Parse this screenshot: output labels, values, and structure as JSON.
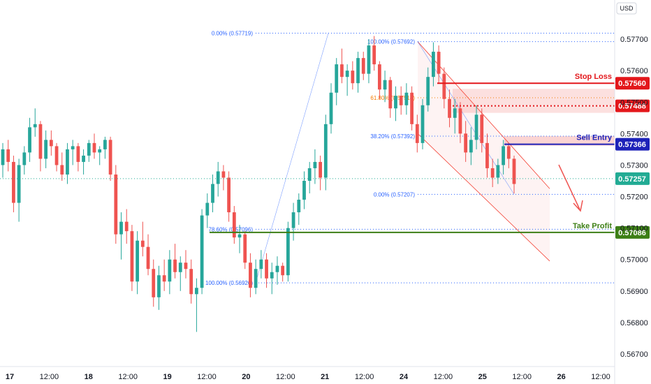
{
  "currency": "USD",
  "colors": {
    "up": "#26a69a",
    "down": "#ef5350",
    "stop": "#e3171b",
    "entry": "#1d22b9",
    "target": "#3d7f16",
    "current": "#22ab94",
    "fib_blue": "#2962ff",
    "fib_orange": "#f57c00",
    "channel": "#f44336"
  },
  "chart_data": {
    "type": "candlestick",
    "y_ticks": [
      "0.57700",
      "0.57600",
      "0.57500",
      "0.57400",
      "0.57300",
      "0.57200",
      "0.57100",
      "0.57000",
      "0.56900",
      "0.56800",
      "0.56700"
    ],
    "ylim": [
      0.5666,
      0.5778
    ],
    "x_ticks": [
      "17",
      "12:00",
      "18",
      "12:00",
      "19",
      "12:00",
      "20",
      "12:00",
      "21",
      "12:00",
      "24",
      "12:00",
      "25",
      "12:00",
      "26",
      "12:00"
    ],
    "levels": [
      {
        "name": "Stop Loss",
        "value": 0.5756,
        "label": "0.57560"
      },
      {
        "name": "",
        "value": 0.57488,
        "label": "0.57488"
      },
      {
        "name": "Sell Entry",
        "value": 0.57366,
        "label": "0.57366"
      },
      {
        "name": "",
        "value": 0.57257,
        "label": "0.57257"
      },
      {
        "name": "Take Profit",
        "value": 0.57086,
        "label": "0.57086"
      }
    ],
    "fib_1": [
      {
        "label": "0.00% (0.57719)",
        "value": 0.57719
      },
      {
        "label": "78.60% (0.57096)",
        "value": 0.57096
      },
      {
        "label": "100.00% (0.56926)",
        "value": 0.56926
      }
    ],
    "fib_2": [
      {
        "label": "100.00% (0.57692)",
        "value": 0.57692
      },
      {
        "label": "61.80% (0.57514)",
        "value": 0.57514
      },
      {
        "label": "38.20% (0.57392)",
        "value": 0.57392
      },
      {
        "label": "0.00% (0.57207)",
        "value": 0.57207
      }
    ],
    "candles": [
      [
        0.573,
        0.5737,
        0.5726,
        0.5735
      ],
      [
        0.5735,
        0.5738,
        0.5728,
        0.5731
      ],
      [
        0.5731,
        0.5733,
        0.5715,
        0.5718
      ],
      [
        0.5718,
        0.5732,
        0.5712,
        0.573
      ],
      [
        0.573,
        0.5736,
        0.5727,
        0.5734
      ],
      [
        0.5734,
        0.5745,
        0.5731,
        0.5742
      ],
      [
        0.5742,
        0.5748,
        0.5739,
        0.5743
      ],
      [
        0.5743,
        0.5744,
        0.5728,
        0.5732
      ],
      [
        0.5732,
        0.5741,
        0.5729,
        0.5738
      ],
      [
        0.5738,
        0.5741,
        0.5733,
        0.5736
      ],
      [
        0.5736,
        0.5737,
        0.5728,
        0.573
      ],
      [
        0.573,
        0.5734,
        0.5725,
        0.5727
      ],
      [
        0.5727,
        0.5737,
        0.5724,
        0.5735
      ],
      [
        0.5735,
        0.5738,
        0.573,
        0.5736
      ],
      [
        0.5736,
        0.5737,
        0.5728,
        0.5731
      ],
      [
        0.5731,
        0.5735,
        0.5727,
        0.5733
      ],
      [
        0.5733,
        0.5738,
        0.5731,
        0.5737
      ],
      [
        0.5737,
        0.574,
        0.5732,
        0.5734
      ],
      [
        0.5734,
        0.5736,
        0.573,
        0.5735
      ],
      [
        0.5735,
        0.5739,
        0.5732,
        0.5738
      ],
      [
        0.5738,
        0.5739,
        0.5725,
        0.5727
      ],
      [
        0.5727,
        0.573,
        0.5705,
        0.5708
      ],
      [
        0.5708,
        0.5715,
        0.57,
        0.5712
      ],
      [
        0.5712,
        0.5716,
        0.5705,
        0.5709
      ],
      [
        0.5709,
        0.5711,
        0.569,
        0.5693
      ],
      [
        0.5693,
        0.5709,
        0.5689,
        0.5706
      ],
      [
        0.5706,
        0.5712,
        0.5701,
        0.5704
      ],
      [
        0.5704,
        0.5708,
        0.5695,
        0.5697
      ],
      [
        0.5697,
        0.57,
        0.5685,
        0.5688
      ],
      [
        0.5688,
        0.5698,
        0.5684,
        0.5695
      ],
      [
        0.5695,
        0.57,
        0.569,
        0.5693
      ],
      [
        0.5693,
        0.5703,
        0.5689,
        0.57
      ],
      [
        0.57,
        0.5705,
        0.5694,
        0.5696
      ],
      [
        0.5696,
        0.5701,
        0.569,
        0.5699
      ],
      [
        0.5699,
        0.5703,
        0.5694,
        0.5697
      ],
      [
        0.5697,
        0.57,
        0.5686,
        0.5689
      ],
      [
        0.5689,
        0.5694,
        0.5677,
        0.5691
      ],
      [
        0.5691,
        0.5716,
        0.5689,
        0.5714
      ],
      [
        0.5714,
        0.5721,
        0.571,
        0.5718
      ],
      [
        0.5718,
        0.5727,
        0.5715,
        0.5724
      ],
      [
        0.5724,
        0.5731,
        0.572,
        0.5728
      ],
      [
        0.5728,
        0.573,
        0.5722,
        0.5726
      ],
      [
        0.5726,
        0.5728,
        0.5712,
        0.5715
      ],
      [
        0.5715,
        0.5717,
        0.5705,
        0.5707
      ],
      [
        0.5707,
        0.5711,
        0.5702,
        0.5708
      ],
      [
        0.5708,
        0.5709,
        0.5697,
        0.5699
      ],
      [
        0.5699,
        0.5702,
        0.5688,
        0.5691
      ],
      [
        0.5691,
        0.57,
        0.5689,
        0.5697
      ],
      [
        0.5697,
        0.5703,
        0.5694,
        0.57
      ],
      [
        0.57,
        0.5702,
        0.5691,
        0.5694
      ],
      [
        0.5694,
        0.5699,
        0.5689,
        0.5696
      ],
      [
        0.5696,
        0.5701,
        0.5692,
        0.5698
      ],
      [
        0.5698,
        0.5699,
        0.5693,
        0.5695
      ],
      [
        0.5695,
        0.5712,
        0.5693,
        0.571
      ],
      [
        0.571,
        0.5718,
        0.5706,
        0.5715
      ],
      [
        0.5715,
        0.5721,
        0.5711,
        0.5719
      ],
      [
        0.5719,
        0.5728,
        0.5716,
        0.5725
      ],
      [
        0.5725,
        0.5731,
        0.5721,
        0.5729
      ],
      [
        0.5729,
        0.5735,
        0.5724,
        0.5731
      ],
      [
        0.5731,
        0.5733,
        0.5722,
        0.5726
      ],
      [
        0.5726,
        0.5746,
        0.5722,
        0.5743
      ],
      [
        0.5743,
        0.5756,
        0.574,
        0.5753
      ],
      [
        0.5753,
        0.5764,
        0.5749,
        0.5762
      ],
      [
        0.5762,
        0.5767,
        0.5756,
        0.5758
      ],
      [
        0.5758,
        0.5762,
        0.5752,
        0.576
      ],
      [
        0.576,
        0.5763,
        0.5754,
        0.5756
      ],
      [
        0.5756,
        0.5766,
        0.5753,
        0.5764
      ],
      [
        0.5764,
        0.5766,
        0.5757,
        0.5759
      ],
      [
        0.5759,
        0.577,
        0.5756,
        0.5768
      ],
      [
        0.5768,
        0.5771,
        0.576,
        0.5762
      ],
      [
        0.5762,
        0.5763,
        0.5751,
        0.5754
      ],
      [
        0.5754,
        0.576,
        0.575,
        0.5757
      ],
      [
        0.5757,
        0.5758,
        0.5745,
        0.5748
      ],
      [
        0.5748,
        0.5755,
        0.5744,
        0.5752
      ],
      [
        0.5752,
        0.5755,
        0.5746,
        0.5749
      ],
      [
        0.5749,
        0.5756,
        0.5746,
        0.5753
      ],
      [
        0.5753,
        0.5755,
        0.5741,
        0.5743
      ],
      [
        0.5743,
        0.5746,
        0.5734,
        0.5737
      ],
      [
        0.5737,
        0.5751,
        0.5735,
        0.5749
      ],
      [
        0.5749,
        0.5761,
        0.5747,
        0.5758
      ],
      [
        0.5758,
        0.5769,
        0.5755,
        0.5766
      ],
      [
        0.5766,
        0.5768,
        0.5756,
        0.5759
      ],
      [
        0.5759,
        0.5761,
        0.5748,
        0.5751
      ],
      [
        0.5751,
        0.5754,
        0.5742,
        0.5745
      ],
      [
        0.5745,
        0.5751,
        0.574,
        0.5748
      ],
      [
        0.5748,
        0.575,
        0.5737,
        0.574
      ],
      [
        0.574,
        0.5744,
        0.5731,
        0.5734
      ],
      [
        0.5734,
        0.5742,
        0.573,
        0.5738
      ],
      [
        0.5738,
        0.5749,
        0.5735,
        0.5746
      ],
      [
        0.5746,
        0.5748,
        0.5734,
        0.5737
      ],
      [
        0.5737,
        0.574,
        0.5726,
        0.5729
      ],
      [
        0.5729,
        0.5732,
        0.5723,
        0.5726
      ],
      [
        0.5726,
        0.5732,
        0.5724,
        0.573
      ],
      [
        0.573,
        0.5738,
        0.5727,
        0.5736
      ],
      [
        0.5736,
        0.5737,
        0.5729,
        0.5732
      ],
      [
        0.5732,
        0.5733,
        0.5721,
        0.5724
      ]
    ]
  }
}
